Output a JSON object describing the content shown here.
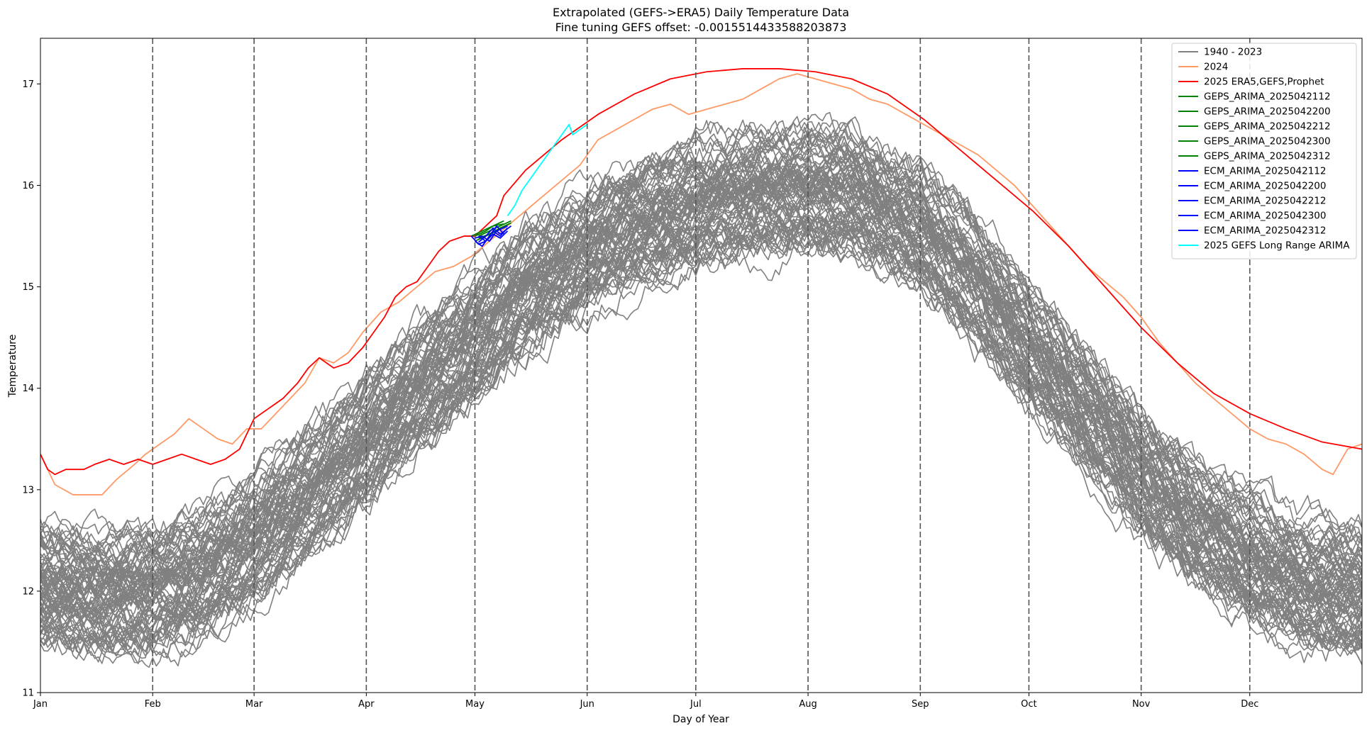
{
  "chart_data": {
    "type": "line",
    "title": "Extrapolated (GEFS->ERA5) Daily Temperature Data",
    "subtitle": "Fine tuning GEFS offset: -0.0015514433588203873",
    "xlabel": "Day of Year",
    "ylabel": "Temperature",
    "xlim": [
      1,
      366
    ],
    "ylim": [
      11,
      17.45
    ],
    "x_ticks": [
      {
        "label": "Jan",
        "day": 1
      },
      {
        "label": "Feb",
        "day": 32
      },
      {
        "label": "Mar",
        "day": 60
      },
      {
        "label": "Apr",
        "day": 91
      },
      {
        "label": "May",
        "day": 121
      },
      {
        "label": "Jun",
        "day": 152
      },
      {
        "label": "Jul",
        "day": 182
      },
      {
        "label": "Aug",
        "day": 213
      },
      {
        "label": "Sep",
        "day": 244
      },
      {
        "label": "Oct",
        "day": 274
      },
      {
        "label": "Nov",
        "day": 305
      },
      {
        "label": "Dec",
        "day": 335
      }
    ],
    "y_ticks": [
      11,
      12,
      13,
      14,
      15,
      16,
      17
    ],
    "vertical_lines_at_month_starts": true,
    "grid": false,
    "legend_position": "top-right",
    "historical_band": {
      "name": "1940 - 2023",
      "color": "#808080",
      "count_of_years": 84,
      "mean_curve": [
        [
          1,
          12.05
        ],
        [
          15,
          11.95
        ],
        [
          32,
          12.0
        ],
        [
          45,
          12.15
        ],
        [
          60,
          12.5
        ],
        [
          75,
          12.95
        ],
        [
          91,
          13.45
        ],
        [
          105,
          13.95
        ],
        [
          121,
          14.45
        ],
        [
          135,
          14.95
        ],
        [
          152,
          15.35
        ],
        [
          165,
          15.6
        ],
        [
          182,
          15.8
        ],
        [
          200,
          15.9
        ],
        [
          213,
          15.95
        ],
        [
          225,
          15.9
        ],
        [
          244,
          15.55
        ],
        [
          260,
          15.0
        ],
        [
          274,
          14.4
        ],
        [
          290,
          13.75
        ],
        [
          305,
          13.15
        ],
        [
          320,
          12.65
        ],
        [
          335,
          12.3
        ],
        [
          350,
          12.05
        ],
        [
          366,
          11.95
        ]
      ],
      "spread_half_width": 0.55
    },
    "series": [
      {
        "name": "2024",
        "color": "#FF9966",
        "points": [
          [
            1,
            13.35
          ],
          [
            5,
            13.05
          ],
          [
            10,
            12.95
          ],
          [
            15,
            12.95
          ],
          [
            18,
            12.95
          ],
          [
            22,
            13.1
          ],
          [
            27,
            13.25
          ],
          [
            30,
            13.35
          ],
          [
            34,
            13.45
          ],
          [
            38,
            13.55
          ],
          [
            42,
            13.7
          ],
          [
            46,
            13.6
          ],
          [
            50,
            13.5
          ],
          [
            54,
            13.45
          ],
          [
            58,
            13.6
          ],
          [
            62,
            13.6
          ],
          [
            66,
            13.75
          ],
          [
            70,
            13.9
          ],
          [
            74,
            14.05
          ],
          [
            78,
            14.3
          ],
          [
            82,
            14.25
          ],
          [
            86,
            14.35
          ],
          [
            90,
            14.55
          ],
          [
            95,
            14.75
          ],
          [
            100,
            14.85
          ],
          [
            105,
            15.0
          ],
          [
            110,
            15.15
          ],
          [
            115,
            15.2
          ],
          [
            120,
            15.3
          ],
          [
            125,
            15.45
          ],
          [
            130,
            15.6
          ],
          [
            135,
            15.75
          ],
          [
            140,
            15.9
          ],
          [
            145,
            16.05
          ],
          [
            150,
            16.2
          ],
          [
            155,
            16.45
          ],
          [
            160,
            16.55
          ],
          [
            165,
            16.65
          ],
          [
            170,
            16.75
          ],
          [
            175,
            16.8
          ],
          [
            180,
            16.7
          ],
          [
            185,
            16.75
          ],
          [
            190,
            16.8
          ],
          [
            195,
            16.85
          ],
          [
            200,
            16.95
          ],
          [
            205,
            17.05
          ],
          [
            210,
            17.1
          ],
          [
            215,
            17.05
          ],
          [
            220,
            17.0
          ],
          [
            225,
            16.95
          ],
          [
            230,
            16.85
          ],
          [
            235,
            16.8
          ],
          [
            240,
            16.7
          ],
          [
            245,
            16.6
          ],
          [
            250,
            16.5
          ],
          [
            255,
            16.4
          ],
          [
            260,
            16.3
          ],
          [
            265,
            16.15
          ],
          [
            270,
            16.0
          ],
          [
            275,
            15.8
          ],
          [
            280,
            15.6
          ],
          [
            285,
            15.4
          ],
          [
            290,
            15.2
          ],
          [
            295,
            15.05
          ],
          [
            300,
            14.9
          ],
          [
            305,
            14.7
          ],
          [
            310,
            14.45
          ],
          [
            315,
            14.25
          ],
          [
            320,
            14.05
          ],
          [
            325,
            13.9
          ],
          [
            330,
            13.75
          ],
          [
            335,
            13.6
          ],
          [
            340,
            13.5
          ],
          [
            345,
            13.45
          ],
          [
            350,
            13.35
          ],
          [
            355,
            13.2
          ],
          [
            358,
            13.15
          ],
          [
            362,
            13.4
          ],
          [
            366,
            13.45
          ]
        ]
      },
      {
        "name": "2025 ERA5,GEFS,Prophet",
        "color": "#FF0000",
        "points": [
          [
            1,
            13.35
          ],
          [
            3,
            13.2
          ],
          [
            5,
            13.15
          ],
          [
            8,
            13.2
          ],
          [
            10,
            13.2
          ],
          [
            13,
            13.2
          ],
          [
            16,
            13.25
          ],
          [
            20,
            13.3
          ],
          [
            24,
            13.25
          ],
          [
            28,
            13.3
          ],
          [
            32,
            13.25
          ],
          [
            36,
            13.3
          ],
          [
            40,
            13.35
          ],
          [
            44,
            13.3
          ],
          [
            48,
            13.25
          ],
          [
            52,
            13.3
          ],
          [
            56,
            13.4
          ],
          [
            60,
            13.7
          ],
          [
            64,
            13.8
          ],
          [
            68,
            13.9
          ],
          [
            72,
            14.05
          ],
          [
            75,
            14.2
          ],
          [
            78,
            14.3
          ],
          [
            82,
            14.2
          ],
          [
            86,
            14.25
          ],
          [
            90,
            14.4
          ],
          [
            93,
            14.55
          ],
          [
            96,
            14.7
          ],
          [
            99,
            14.9
          ],
          [
            102,
            15.0
          ],
          [
            105,
            15.05
          ],
          [
            108,
            15.2
          ],
          [
            111,
            15.35
          ],
          [
            114,
            15.45
          ],
          [
            118,
            15.5
          ],
          [
            121,
            15.5
          ],
          [
            124,
            15.6
          ],
          [
            127,
            15.7
          ],
          [
            129,
            15.9
          ],
          [
            135,
            16.15
          ],
          [
            145,
            16.45
          ],
          [
            155,
            16.7
          ],
          [
            165,
            16.9
          ],
          [
            175,
            17.05
          ],
          [
            185,
            17.12
          ],
          [
            195,
            17.15
          ],
          [
            205,
            17.15
          ],
          [
            215,
            17.12
          ],
          [
            225,
            17.05
          ],
          [
            235,
            16.9
          ],
          [
            245,
            16.65
          ],
          [
            255,
            16.35
          ],
          [
            265,
            16.05
          ],
          [
            275,
            15.75
          ],
          [
            285,
            15.4
          ],
          [
            295,
            15.0
          ],
          [
            305,
            14.6
          ],
          [
            315,
            14.25
          ],
          [
            325,
            13.95
          ],
          [
            335,
            13.75
          ],
          [
            345,
            13.6
          ],
          [
            355,
            13.47
          ],
          [
            366,
            13.4
          ]
        ]
      },
      {
        "name": "GEPS_ARIMA_2025042112",
        "color": "#008000",
        "points": [
          [
            120,
            15.5
          ],
          [
            123,
            15.55
          ],
          [
            126,
            15.6
          ],
          [
            129,
            15.65
          ]
        ]
      },
      {
        "name": "GEPS_ARIMA_2025042200",
        "color": "#008000",
        "points": [
          [
            121,
            15.45
          ],
          [
            124,
            15.5
          ],
          [
            127,
            15.55
          ],
          [
            130,
            15.6
          ]
        ]
      },
      {
        "name": "GEPS_ARIMA_2025042212",
        "color": "#008000",
        "points": [
          [
            121,
            15.5
          ],
          [
            124,
            15.55
          ],
          [
            126,
            15.6
          ],
          [
            129,
            15.62
          ]
        ]
      },
      {
        "name": "GEPS_ARIMA_2025042300",
        "color": "#008000",
        "points": [
          [
            122,
            15.5
          ],
          [
            125,
            15.55
          ],
          [
            128,
            15.6
          ],
          [
            131,
            15.65
          ]
        ]
      },
      {
        "name": "GEPS_ARIMA_2025042312",
        "color": "#008000",
        "points": [
          [
            122,
            15.48
          ],
          [
            125,
            15.52
          ],
          [
            128,
            15.58
          ],
          [
            131,
            15.63
          ]
        ]
      },
      {
        "name": "ECM_ARIMA_2025042112",
        "color": "#0000FF",
        "points": [
          [
            120,
            15.5
          ],
          [
            122,
            15.42
          ],
          [
            124,
            15.45
          ],
          [
            126,
            15.55
          ],
          [
            128,
            15.5
          ],
          [
            130,
            15.58
          ]
        ]
      },
      {
        "name": "ECM_ARIMA_2025042200",
        "color": "#0000FF",
        "points": [
          [
            121,
            15.45
          ],
          [
            123,
            15.4
          ],
          [
            125,
            15.5
          ],
          [
            127,
            15.6
          ],
          [
            129,
            15.52
          ]
        ]
      },
      {
        "name": "ECM_ARIMA_2025042212",
        "color": "#0000FF",
        "points": [
          [
            121,
            15.48
          ],
          [
            123,
            15.5
          ],
          [
            125,
            15.45
          ],
          [
            127,
            15.55
          ],
          [
            130,
            15.6
          ]
        ]
      },
      {
        "name": "ECM_ARIMA_2025042300",
        "color": "#0000FF",
        "points": [
          [
            122,
            15.5
          ],
          [
            124,
            15.45
          ],
          [
            126,
            15.52
          ],
          [
            128,
            15.48
          ],
          [
            130,
            15.55
          ]
        ]
      },
      {
        "name": "ECM_ARIMA_2025042312",
        "color": "#0000FF",
        "points": [
          [
            122,
            15.44
          ],
          [
            124,
            15.5
          ],
          [
            126,
            15.58
          ],
          [
            128,
            15.52
          ],
          [
            131,
            15.6
          ]
        ]
      },
      {
        "name": "2025 GEFS Long Range ARIMA",
        "color": "#00FFFF",
        "points": [
          [
            130,
            15.7
          ],
          [
            132,
            15.8
          ],
          [
            134,
            15.95
          ],
          [
            136,
            16.05
          ],
          [
            138,
            16.15
          ],
          [
            140,
            16.25
          ],
          [
            142,
            16.35
          ],
          [
            144,
            16.45
          ],
          [
            146,
            16.55
          ],
          [
            147,
            16.6
          ],
          [
            148,
            16.5
          ],
          [
            150,
            16.55
          ],
          [
            152,
            16.6
          ]
        ]
      }
    ]
  }
}
